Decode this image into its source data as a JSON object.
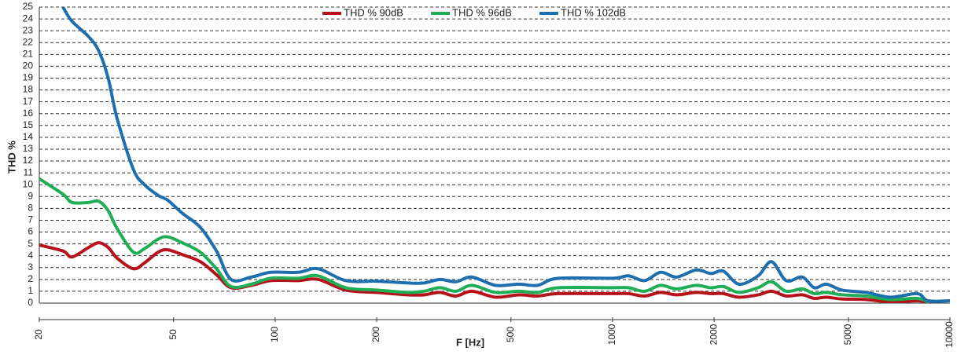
{
  "chart_data": {
    "type": "line",
    "xlabel": "F [Hz]",
    "ylabel": "THD %",
    "xscale": "log",
    "xlim": [
      20,
      10000
    ],
    "xticks": [
      20,
      50,
      100,
      200,
      500,
      1000,
      2000,
      5000,
      10000
    ],
    "ylim": [
      0,
      25
    ],
    "yticks": [
      0,
      1,
      2,
      3,
      4,
      5,
      6,
      7,
      8,
      9,
      10,
      11,
      12,
      13,
      14,
      15,
      16,
      17,
      18,
      19,
      20,
      21,
      22,
      23,
      24,
      25
    ],
    "grid": true,
    "legend": "top",
    "x": [
      20,
      23.5,
      25,
      28,
      30,
      32,
      34,
      38,
      41,
      45,
      48,
      53,
      60,
      67,
      74,
      85,
      97,
      117,
      134,
      162,
      200,
      248,
      276,
      308,
      343,
      383,
      450,
      527,
      600,
      690,
      1000,
      1116,
      1244,
      1388,
      1548,
      1770,
      1958,
      2130,
      2370,
      2700,
      2960,
      3270,
      3650,
      3960,
      4300,
      4790,
      5650,
      6660,
      8000,
      8600,
      10000
    ],
    "series": [
      {
        "name": "THD % 90dB",
        "color": "#b5121b",
        "values": [
          4.9,
          4.4,
          3.9,
          4.7,
          5.1,
          4.7,
          3.8,
          2.9,
          3.4,
          4.3,
          4.5,
          4.1,
          3.5,
          2.4,
          1.3,
          1.5,
          1.9,
          1.9,
          2.0,
          1.1,
          0.9,
          0.7,
          0.7,
          0.9,
          0.6,
          1.0,
          0.5,
          0.7,
          0.6,
          0.8,
          0.8,
          0.8,
          0.6,
          0.9,
          0.7,
          0.9,
          0.8,
          0.8,
          0.5,
          0.7,
          1.0,
          0.6,
          0.7,
          0.4,
          0.5,
          0.35,
          0.3,
          0.1,
          0.2,
          0.05,
          null
        ]
      },
      {
        "name": "THD % 96dB",
        "color": "#1fae55",
        "values": [
          10.5,
          9.2,
          8.5,
          8.5,
          8.6,
          7.8,
          6.3,
          4.3,
          4.6,
          5.4,
          5.6,
          5.1,
          4.3,
          2.9,
          1.4,
          1.6,
          2.1,
          2.1,
          2.3,
          1.3,
          1.1,
          0.9,
          1.0,
          1.3,
          1.0,
          1.5,
          0.9,
          1.0,
          0.9,
          1.3,
          1.3,
          1.3,
          1.0,
          1.5,
          1.2,
          1.5,
          1.3,
          1.4,
          0.9,
          1.3,
          1.8,
          1.0,
          1.2,
          0.8,
          0.9,
          0.7,
          0.6,
          0.3,
          0.4,
          0.1,
          null
        ]
      },
      {
        "name": "THD % 102dB",
        "color": "#1f6fae",
        "values": [
          null,
          25,
          23.8,
          22.5,
          21.3,
          19,
          15.6,
          11.3,
          10,
          9.1,
          8.7,
          7.6,
          6.4,
          4.4,
          2.0,
          2.2,
          2.6,
          2.6,
          2.9,
          1.9,
          1.85,
          1.7,
          1.7,
          2.0,
          1.8,
          2.2,
          1.5,
          1.6,
          1.5,
          2.1,
          2.1,
          2.3,
          1.9,
          2.6,
          2.2,
          2.8,
          2.5,
          2.7,
          1.6,
          2.3,
          3.5,
          1.9,
          2.2,
          1.3,
          1.6,
          1.1,
          0.9,
          0.5,
          0.8,
          0.2,
          0.2
        ]
      }
    ]
  }
}
